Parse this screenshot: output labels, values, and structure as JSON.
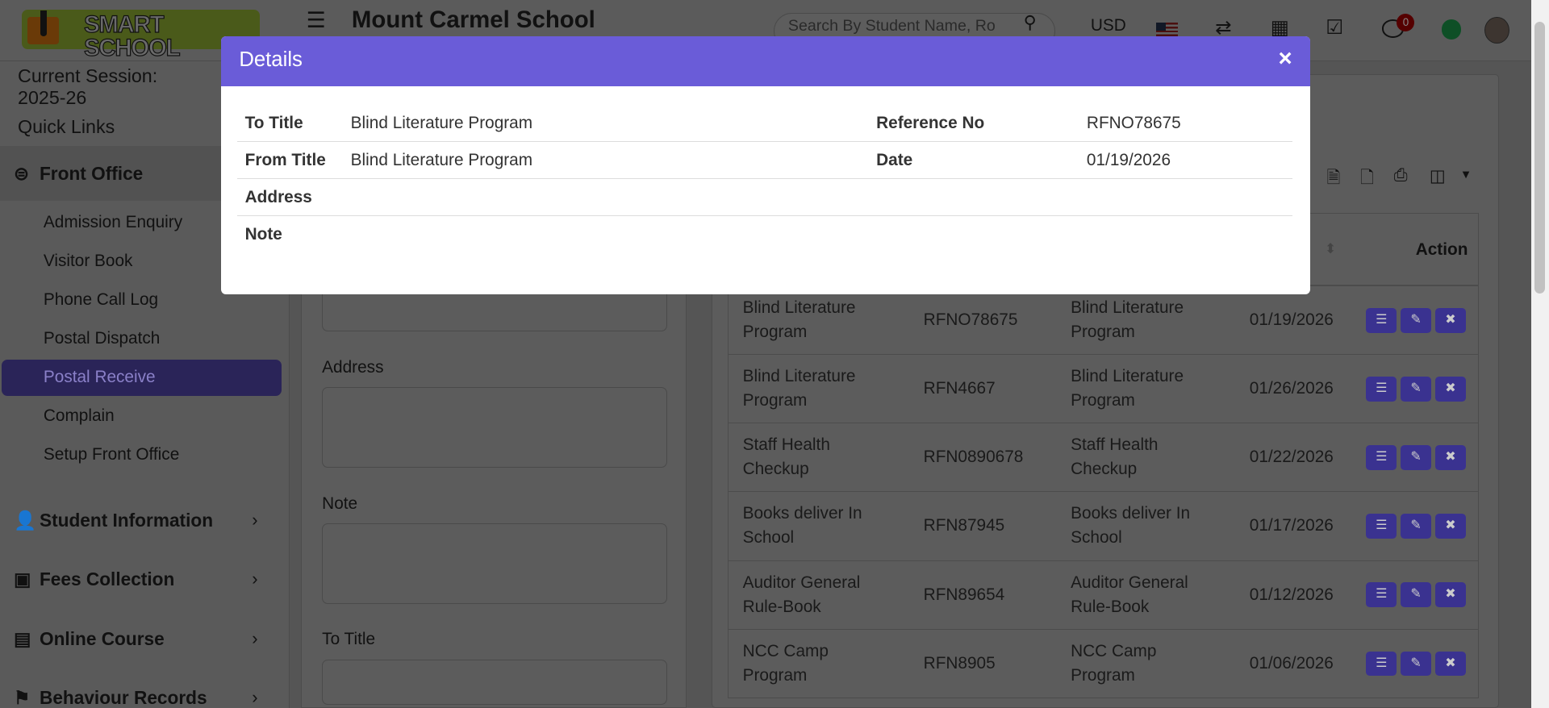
{
  "header": {
    "logo_text": "SMART SCHOOL",
    "school_name": "Mount Carmel School",
    "search_placeholder": "Search By Student Name, Ro",
    "currency": "USD",
    "notification_count": "0"
  },
  "sidebar": {
    "session": "Current Session: 2025-26",
    "quick_links": "Quick Links",
    "front_office": "Front Office",
    "sub_items": [
      "Admission Enquiry",
      "Visitor Book",
      "Phone Call Log",
      "Postal Dispatch",
      "Postal Receive",
      "Complain",
      "Setup Front Office"
    ],
    "active_item": "Postal Receive",
    "sections": [
      "Student Information",
      "Fees Collection",
      "Online Course",
      "Behaviour Records"
    ]
  },
  "form": {
    "labels": [
      "Address",
      "Note",
      "To Title"
    ]
  },
  "table": {
    "action_header": "Action",
    "rows": [
      [
        "Blind Literature Program",
        "RFNO78675",
        "Blind Literature Program",
        "01/19/2026"
      ],
      [
        "Blind Literature Program",
        "RFN4667",
        "Blind Literature Program",
        "01/26/2026"
      ],
      [
        "Staff Health Checkup",
        "RFN0890678",
        "Staff Health Checkup",
        "01/22/2026"
      ],
      [
        "Books deliver In School",
        "RFN87945",
        "Books deliver In School",
        "01/17/2026"
      ],
      [
        "Auditor General Rule-Book",
        "RFN89654",
        "Auditor General Rule-Book",
        "01/12/2026"
      ],
      [
        "NCC Camp Program",
        "RFN8905",
        "NCC Camp Program",
        "01/06/2026"
      ]
    ]
  },
  "modal": {
    "title": "Details",
    "close": "×",
    "to_title_label": "To Title",
    "to_title": "Blind Literature Program",
    "from_title_label": "From Title",
    "from_title": "Blind Literature Program",
    "address_label": "Address",
    "note_label": "Note",
    "reference_label": "Reference No",
    "reference": "RFNO78675",
    "date_label": "Date",
    "date": "01/19/2026"
  },
  "colors": {
    "accent": "#6a5cd8"
  }
}
